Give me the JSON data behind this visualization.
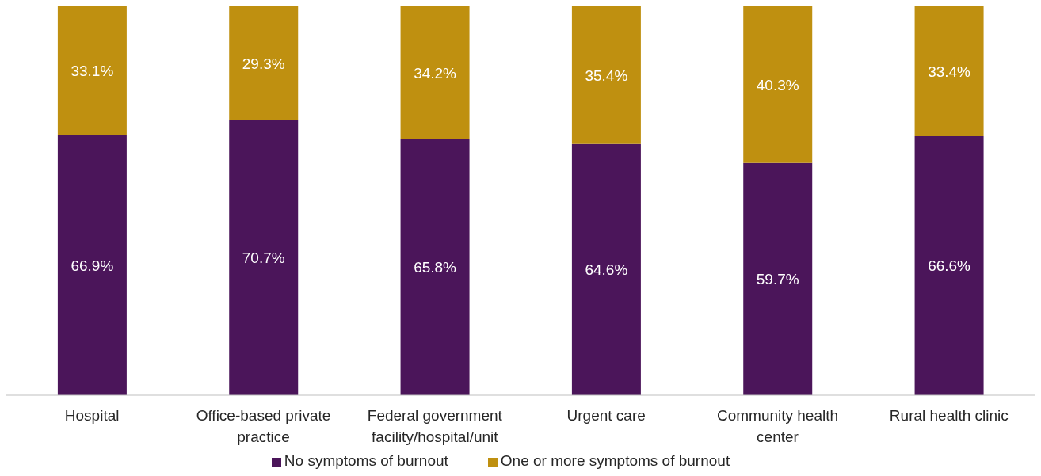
{
  "chart_data": {
    "type": "bar",
    "stacked": true,
    "categories": [
      "Hospital",
      "Office-based private practice",
      "Federal government facility/hospital/unit",
      "Urgent care",
      "Community health center",
      "Rural health clinic"
    ],
    "series": [
      {
        "name": "No symptoms of burnout",
        "color": "#4b155a",
        "values": [
          66.9,
          70.7,
          65.8,
          64.6,
          59.7,
          66.6
        ],
        "value_labels": [
          "66.9%",
          "70.7%",
          "65.8%",
          "64.6%",
          "59.7%",
          "66.6%"
        ]
      },
      {
        "name": "One or more symptoms of burnout",
        "color": "#bf9010",
        "values": [
          33.1,
          29.3,
          34.2,
          35.4,
          40.3,
          33.4
        ],
        "value_labels": [
          "33.1%",
          "29.3%",
          "34.2%",
          "35.4%",
          "40.3%",
          "33.4%"
        ]
      }
    ],
    "legend": "bottom",
    "grid": false
  }
}
